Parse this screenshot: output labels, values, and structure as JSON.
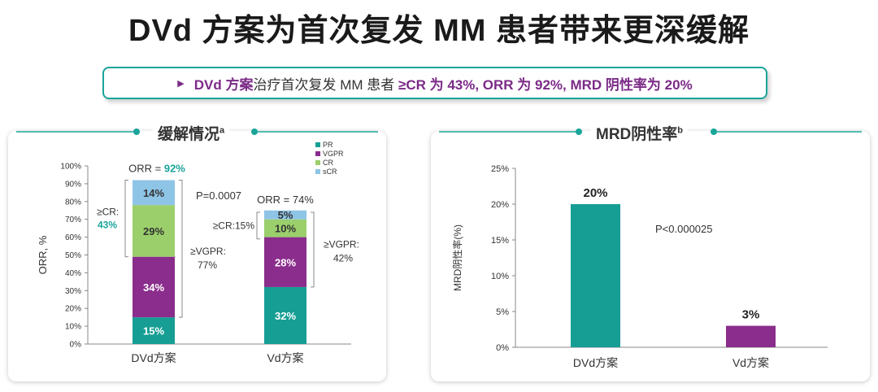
{
  "title": "DVd 方案为首次复发 MM 患者带来更深缓解",
  "banner": {
    "part1": "DVd 方案",
    "part2": "治疗首次复发 MM 患者 ",
    "part3": "≥CR 为 43%, ORR 为 92%, MRD 阴性率为 20%"
  },
  "left_title": "缓解情况",
  "left_title_sup": "a",
  "right_title": "MRD阴性率",
  "right_title_sup": "b",
  "colors": {
    "PR": "#169e94",
    "VGPR": "#8a2d8c",
    "CR": "#9bcf6c",
    "sCR": "#8ec4e6",
    "teal": "#1aa59a",
    "purple": "#7b2a87"
  },
  "chart_data": [
    {
      "type": "bar",
      "stacked": true,
      "categories": [
        "DVd方案",
        "Vd方案"
      ],
      "ylabel": "ORR, %",
      "ylim": [
        0,
        100
      ],
      "yticks": [
        "0%",
        "10%",
        "20%",
        "30%",
        "40%",
        "50%",
        "60%",
        "70%",
        "80%",
        "90%",
        "100%"
      ],
      "series": [
        {
          "name": "PR",
          "values": [
            15,
            32
          ],
          "labels": [
            "15%",
            "32%"
          ]
        },
        {
          "name": "VGPR",
          "values": [
            34,
            28
          ],
          "labels": [
            "34%",
            "28%"
          ]
        },
        {
          "name": "CR",
          "values": [
            29,
            10
          ],
          "labels": [
            "29%",
            "10%"
          ]
        },
        {
          "name": "sCR",
          "values": [
            14,
            5
          ],
          "labels": [
            "14%",
            "5%"
          ]
        }
      ],
      "legend_position": "top-right",
      "annotations": {
        "orr": [
          {
            "prefix": "ORR = ",
            "value": "92%"
          },
          {
            "prefix": "ORR = ",
            "value": "74%"
          }
        ],
        "p_value": "P=0.0007",
        "dvd_cr_label": "≥CR:",
        "dvd_cr_value": "43%",
        "dvd_vgpr_label": "≥VGPR:",
        "dvd_vgpr_value": "77%",
        "vd_cr_label": "≥CR:15%",
        "vd_vgpr_label": "≥VGPR:",
        "vd_vgpr_value": "42%"
      }
    },
    {
      "type": "bar",
      "categories": [
        "DVd方案",
        "Vd方案"
      ],
      "values": [
        20,
        3
      ],
      "labels": [
        "20%",
        "3%"
      ],
      "ylabel": "MRD阴性率(%)",
      "ylim": [
        0,
        25
      ],
      "yticks": [
        "0%",
        "5%",
        "10%",
        "15%",
        "20%",
        "25%"
      ],
      "p_value": "P<0.000025"
    }
  ]
}
